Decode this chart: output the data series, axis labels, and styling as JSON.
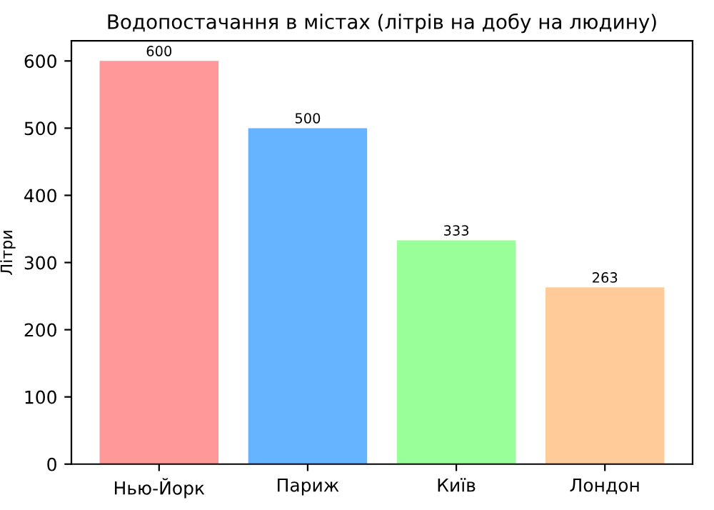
{
  "chart_data": {
    "type": "bar",
    "title": "Водопостачання в містах (літрів на добу на людину)",
    "ylabel": "Літри",
    "categories": [
      "Нью-Йорк",
      "Париж",
      "Київ",
      "Лондон"
    ],
    "values": [
      600,
      500,
      333,
      263
    ],
    "colors": [
      "#ff9999",
      "#66b3ff",
      "#99ff99",
      "#ffcc99"
    ],
    "ylim": [
      0,
      630
    ],
    "yticks": [
      0,
      100,
      200,
      300,
      400,
      500,
      600
    ],
    "data_labels": true,
    "grid": false,
    "legend": false
  }
}
